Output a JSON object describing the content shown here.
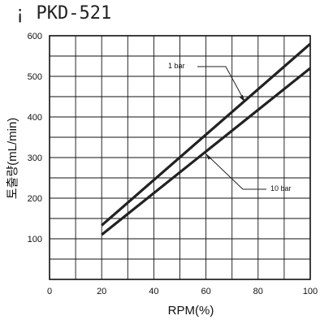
{
  "header": {
    "title": "¡ PKD-521"
  },
  "chart_data": {
    "type": "line",
    "title": "¡ PKD-521",
    "xlabel": "RPM(%)",
    "ylabel": "토출량(mL/min)",
    "xlim": [
      0,
      100
    ],
    "ylim": [
      0,
      600
    ],
    "x_ticks": [
      0,
      20,
      40,
      60,
      80,
      100
    ],
    "y_ticks": [
      100,
      200,
      300,
      400,
      500,
      600
    ],
    "grid": true,
    "series": [
      {
        "name": "1 bar",
        "x": [
          20,
          100
        ],
        "y": [
          133,
          580
        ]
      },
      {
        "name": "10 bar",
        "x": [
          20,
          100
        ],
        "y": [
          110,
          520
        ]
      }
    ],
    "annotations": [
      {
        "text": "1 bar",
        "series": 0
      },
      {
        "text": "10 bar",
        "series": 1
      }
    ]
  },
  "colors": {
    "line": "#222222",
    "grid": "#111111"
  }
}
